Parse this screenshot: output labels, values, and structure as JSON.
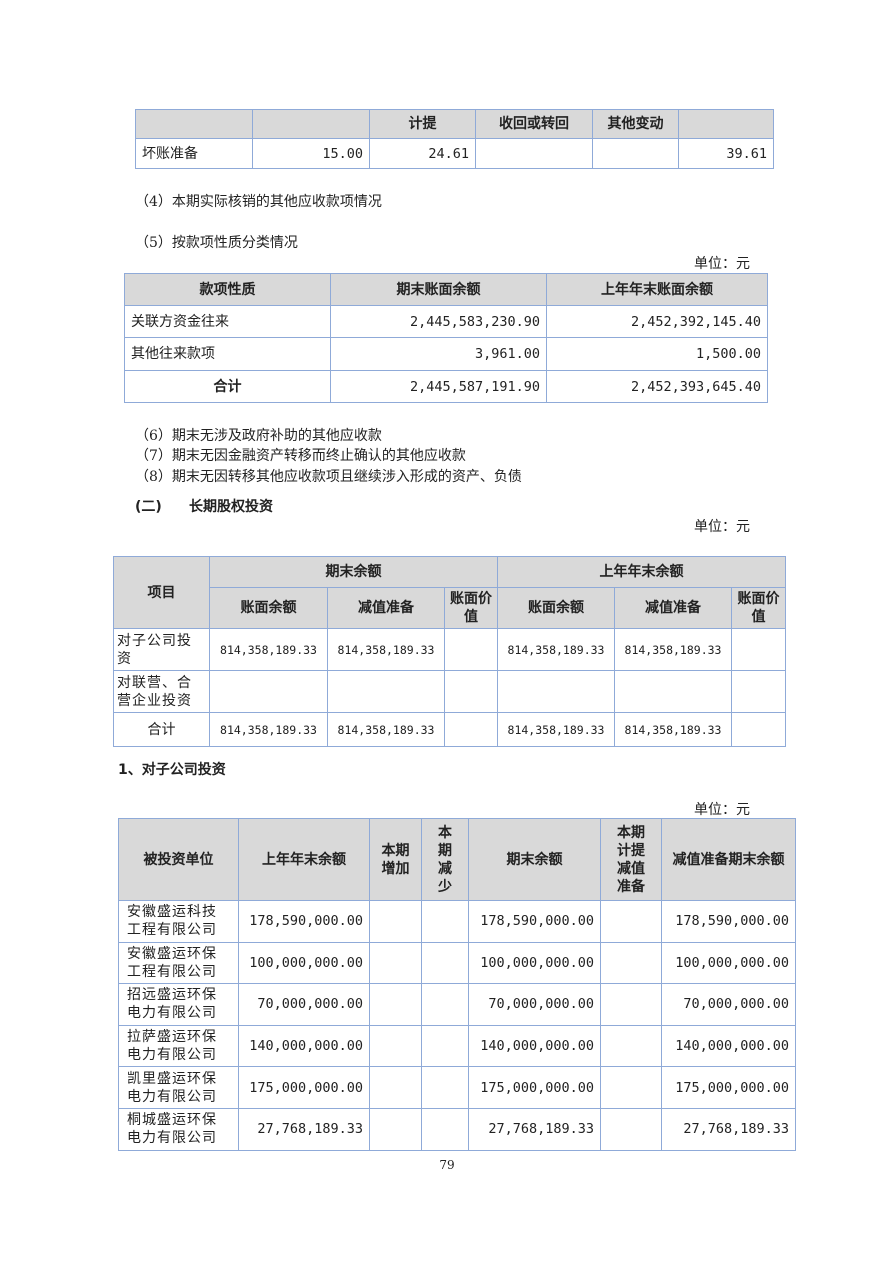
{
  "table_bad_debt": {
    "headers": [
      "",
      "",
      "计提",
      "收回或转回",
      "其他变动",
      ""
    ],
    "row": [
      "坏账准备",
      "15.00",
      "24.61",
      "",
      "",
      "39.61"
    ]
  },
  "section4": "（4）本期实际核销的其他应收款项情况",
  "section5": "（5）按款项性质分类情况",
  "unit": "单位：元",
  "table_nature": {
    "headers": [
      "款项性质",
      "期末账面余额",
      "上年年末账面余额"
    ],
    "rows": [
      [
        "关联方资金往来",
        "2,445,583,230.90",
        "2,452,392,145.40"
      ],
      [
        "其他往来款项",
        "3,961.00",
        "1,500.00"
      ],
      [
        "合计",
        "2,445,587,191.90",
        "2,452,393,645.40"
      ]
    ]
  },
  "notes": [
    "（6）期末无涉及政府补助的其他应收款",
    "（7）期末无因金融资产转移而终止确认的其他应收款",
    "（8）期末无因转移其他应收款项且继续涉入形成的资产、负债"
  ],
  "section_lti": {
    "num": "(二)",
    "title": "长期股权投资"
  },
  "table_lti": {
    "h_item": "项目",
    "h_end": "期末余额",
    "h_prev": "上年年末余额",
    "sub": [
      "账面余额",
      "减值准备",
      "账面价值",
      "账面余额",
      "减值准备",
      "账面价值"
    ],
    "rows": [
      [
        "对子公司投资",
        "814,358,189.33",
        "814,358,189.33",
        "",
        "814,358,189.33",
        "814,358,189.33",
        ""
      ],
      [
        "对联营、合营企业投资",
        "",
        "",
        "",
        "",
        "",
        ""
      ],
      [
        "合计",
        "814,358,189.33",
        "814,358,189.33",
        "",
        "814,358,189.33",
        "814,358,189.33",
        ""
      ]
    ]
  },
  "section_sub": "1、对子公司投资",
  "table_sub": {
    "headers": [
      "被投资单位",
      "上年年末余额",
      "本期增加",
      "本期减少",
      "期末余额",
      "本期计提减值准备",
      "减值准备期末余额"
    ],
    "rows": [
      [
        "安徽盛运科技工程有限公司",
        "178,590,000.00",
        "",
        "",
        "178,590,000.00",
        "",
        "178,590,000.00"
      ],
      [
        "安徽盛运环保工程有限公司",
        "100,000,000.00",
        "",
        "",
        "100,000,000.00",
        "",
        "100,000,000.00"
      ],
      [
        "招远盛运环保电力有限公司",
        "70,000,000.00",
        "",
        "",
        "70,000,000.00",
        "",
        "70,000,000.00"
      ],
      [
        "拉萨盛运环保电力有限公司",
        "140,000,000.00",
        "",
        "",
        "140,000,000.00",
        "",
        "140,000,000.00"
      ],
      [
        "凯里盛运环保电力有限公司",
        "175,000,000.00",
        "",
        "",
        "175,000,000.00",
        "",
        "175,000,000.00"
      ],
      [
        "桐城盛运环保电力有限公司",
        "27,768,189.33",
        "",
        "",
        "27,768,189.33",
        "",
        "27,768,189.33"
      ]
    ]
  },
  "page_number": "79"
}
